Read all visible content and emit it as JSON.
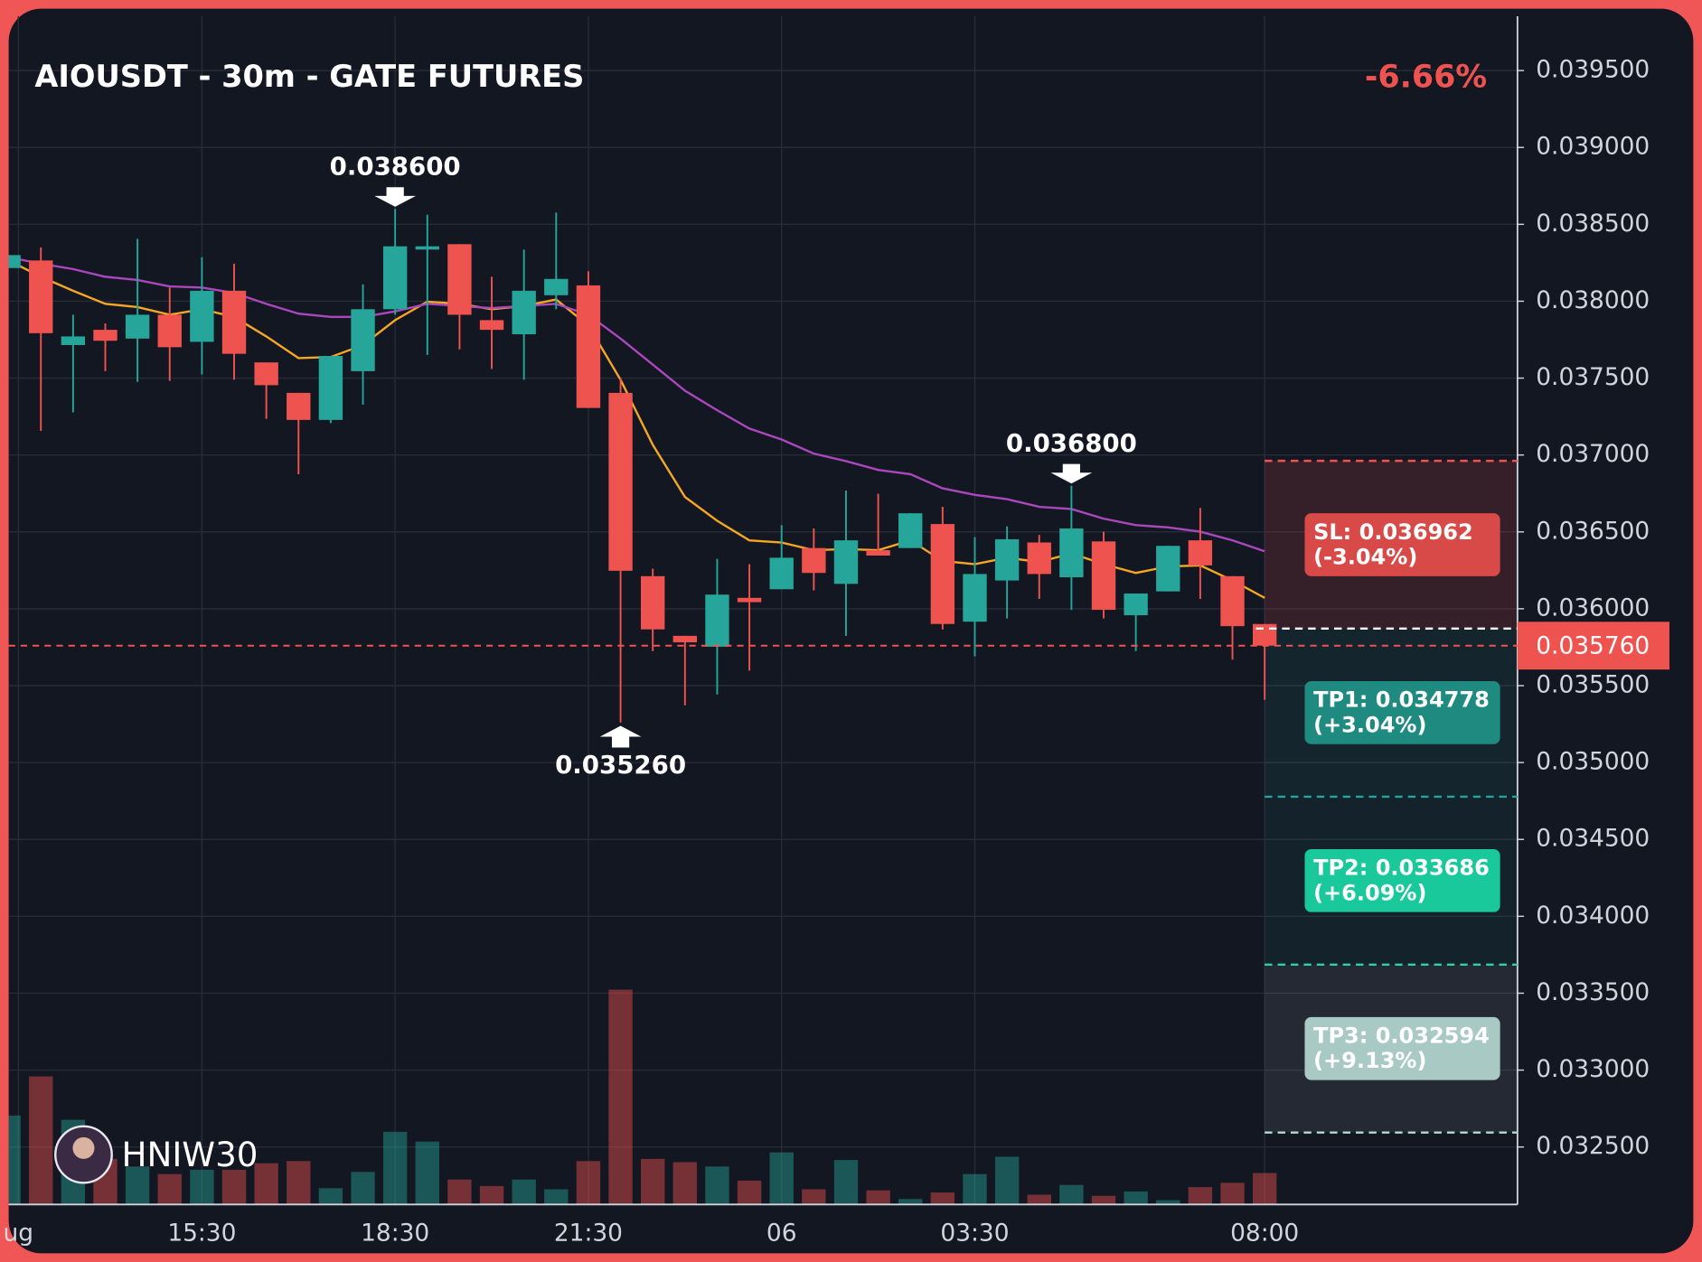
{
  "chart_data": {
    "type": "candlestick",
    "title": "AIOUSDT - 30m - GATE FUTURES",
    "change_label": "-6.66%",
    "watermark": "HNIW30",
    "up_color": "#26a69a",
    "down_color": "#ef5350",
    "open": [
      0.038216,
      0.038265,
      0.037715,
      0.037814,
      0.037757,
      0.037912,
      0.037736,
      0.038068,
      0.037602,
      0.037404,
      0.037228,
      0.037545,
      0.037948,
      0.038336,
      0.038371,
      0.037877,
      0.037785,
      0.038039,
      0.038103,
      0.037404,
      0.036212,
      0.035824,
      0.035753,
      0.036071,
      0.036127,
      0.036395,
      0.036162,
      0.036381,
      0.036395,
      0.036551,
      0.035916,
      0.036184,
      0.036431,
      0.036205,
      0.036438,
      0.035958,
      0.036113,
      0.036445,
      0.036212,
      0.035901
    ],
    "high": [
      0.0383,
      0.03835,
      0.037912,
      0.037856,
      0.038406,
      0.038089,
      0.038286,
      0.038244,
      0.037602,
      0.037404,
      0.037644,
      0.03811,
      0.0386,
      0.038562,
      0.038371,
      0.038159,
      0.038336,
      0.038576,
      0.038195,
      0.037503,
      0.036261,
      0.035824,
      0.036325,
      0.03629,
      0.036544,
      0.036522,
      0.036769,
      0.036748,
      0.036621,
      0.036663,
      0.036466,
      0.036536,
      0.03648,
      0.0368,
      0.036501,
      0.036099,
      0.036409,
      0.036656,
      0.036212,
      0.035901
    ],
    "low": [
      0.038216,
      0.037157,
      0.037277,
      0.037545,
      0.037475,
      0.037482,
      0.037524,
      0.037489,
      0.037235,
      0.036875,
      0.037207,
      0.037327,
      0.037912,
      0.037651,
      0.037687,
      0.03756,
      0.037489,
      0.037948,
      0.037306,
      0.03526,
      0.035725,
      0.035372,
      0.035443,
      0.035598,
      0.036127,
      0.03612,
      0.035824,
      0.036346,
      0.036395,
      0.035866,
      0.03569,
      0.035937,
      0.036064,
      0.035993,
      0.035937,
      0.035725,
      0.036113,
      0.036064,
      0.035669,
      0.035408
    ],
    "close": [
      0.0383,
      0.037792,
      0.037771,
      0.037743,
      0.037912,
      0.037701,
      0.038068,
      0.037658,
      0.037454,
      0.037228,
      0.037644,
      0.037948,
      0.038357,
      0.038357,
      0.037912,
      0.037814,
      0.038068,
      0.038145,
      0.037306,
      0.036247,
      0.035866,
      0.035782,
      0.036092,
      0.036043,
      0.036332,
      0.036233,
      0.036445,
      0.036346,
      0.036621,
      0.035901,
      0.036226,
      0.036452,
      0.036226,
      0.036522,
      0.035993,
      0.036099,
      0.036409,
      0.036282,
      0.035887,
      0.03576
    ],
    "volume": [
      82,
      118,
      78,
      42,
      35,
      28,
      32,
      32,
      38,
      40,
      15,
      30,
      67,
      58,
      23,
      17,
      23,
      14,
      40,
      198,
      42,
      39,
      35,
      22,
      48,
      14,
      41,
      13,
      5,
      11,
      28,
      44,
      9,
      18,
      8,
      12,
      4,
      16,
      20,
      29
    ],
    "series": [
      {
        "color": "#f5a623",
        "values": [
          0.038265,
          0.038159,
          0.038068,
          0.037983,
          0.037962,
          0.037912,
          0.037948,
          0.037898,
          0.037771,
          0.03763,
          0.037637,
          0.037715,
          0.037877,
          0.037997,
          0.037983,
          0.037948,
          0.037969,
          0.038011,
          0.037842,
          0.037489,
          0.037066,
          0.036727,
          0.036572,
          0.036445,
          0.036431,
          0.036381,
          0.036388,
          0.036381,
          0.036445,
          0.036311,
          0.03629,
          0.036332,
          0.036304,
          0.03636,
          0.03629,
          0.036233,
          0.036275,
          0.036282,
          0.036184,
          0.036071
        ]
      },
      {
        "color": "#ab47bc",
        "values": [
          0.038286,
          0.038244,
          0.038209,
          0.038159,
          0.038138,
          0.038096,
          0.038089,
          0.038054,
          0.037983,
          0.037919,
          0.037898,
          0.037898,
          0.037934,
          0.037983,
          0.037969,
          0.037955,
          0.037969,
          0.037983,
          0.037912,
          0.037757,
          0.037588,
          0.037418,
          0.037291,
          0.037172,
          0.037101,
          0.037009,
          0.03696,
          0.036903,
          0.036875,
          0.036783,
          0.036741,
          0.036713,
          0.036663,
          0.036649,
          0.036586,
          0.036544,
          0.036529,
          0.036501,
          0.036445,
          0.036374
        ]
      }
    ],
    "annotations": [
      {
        "index": 12,
        "value": 0.0386,
        "label": "0.038600",
        "side": "above"
      },
      {
        "index": 19,
        "value": 0.03526,
        "label": "0.035260",
        "side": "below"
      },
      {
        "index": 33,
        "value": 0.0368,
        "label": "0.036800",
        "side": "above"
      }
    ],
    "last_price": {
      "value": 0.03576,
      "label": "0.035760",
      "color": "#ef5350"
    },
    "entry": 0.035871,
    "levels": [
      {
        "value": 0.036962,
        "label": "SL: 0.036962",
        "pct_label": "(-3.04%)",
        "color": "#ef5350",
        "box_color": "#d84a47",
        "zone": "rgba(239,83,80,0.16)"
      },
      {
        "value": 0.034778,
        "label": "TP1: 0.034778",
        "pct_label": "(+3.04%)",
        "color": "#26a69a",
        "box_color": "#1f8b80",
        "zone": "rgba(38,166,154,0.10)"
      },
      {
        "value": 0.033686,
        "label": "TP2: 0.033686",
        "pct_label": "(+6.09%)",
        "color": "#2ad3a8",
        "box_color": "#19c99b",
        "zone": "rgba(38,166,154,0.08)"
      },
      {
        "value": 0.032594,
        "label": "TP3: 0.032594",
        "pct_label": "(+9.13%)",
        "color": "#b8d8d4",
        "box_color": "#a9c9c5",
        "zone": "rgba(200,210,220,0.10)"
      }
    ],
    "xlim": [
      0,
      46.85
    ],
    "ylim": [
      0.032126,
      0.039853
    ],
    "xticks": [
      {
        "value": 0.3,
        "label": "ug"
      },
      {
        "value": 6,
        "label": "15:30"
      },
      {
        "value": 12,
        "label": "18:30"
      },
      {
        "value": 18,
        "label": "21:30"
      },
      {
        "value": 24,
        "label": "06"
      },
      {
        "value": 30,
        "label": "03:30"
      },
      {
        "value": 39,
        "label": "08:00"
      }
    ],
    "yticks": [
      {
        "value": 0.0325,
        "label": "0.032500"
      },
      {
        "value": 0.033,
        "label": "0.033000"
      },
      {
        "value": 0.0335,
        "label": "0.033500"
      },
      {
        "value": 0.034,
        "label": "0.034000"
      },
      {
        "value": 0.0345,
        "label": "0.034500"
      },
      {
        "value": 0.035,
        "label": "0.035000"
      },
      {
        "value": 0.0355,
        "label": "0.035500"
      },
      {
        "value": 0.036,
        "label": "0.036000"
      },
      {
        "value": 0.0365,
        "label": "0.036500"
      },
      {
        "value": 0.037,
        "label": "0.037000"
      },
      {
        "value": 0.0375,
        "label": "0.037500"
      },
      {
        "value": 0.038,
        "label": "0.038000"
      },
      {
        "value": 0.0385,
        "label": "0.038500"
      },
      {
        "value": 0.039,
        "label": "0.039000"
      },
      {
        "value": 0.0395,
        "label": "0.039500"
      }
    ],
    "grid": true
  }
}
